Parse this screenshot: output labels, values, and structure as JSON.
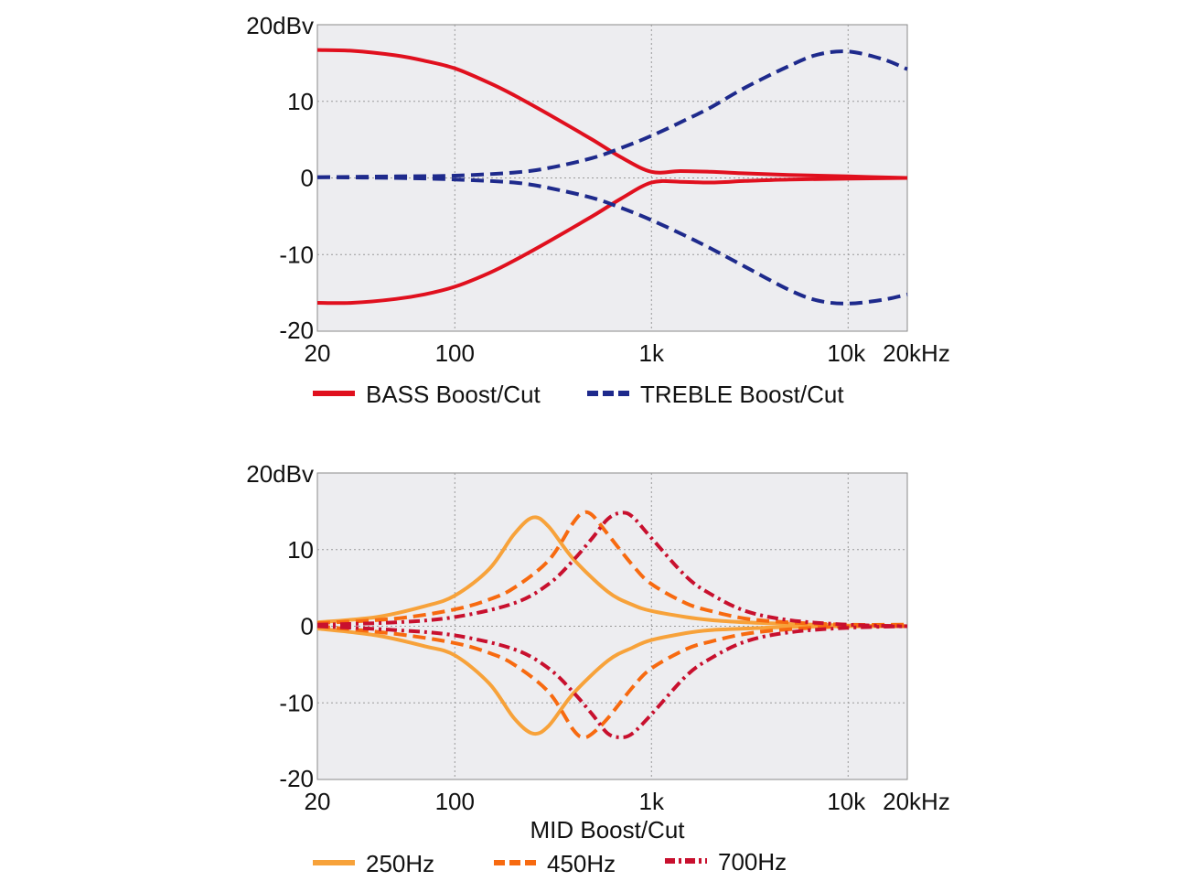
{
  "chart_data": [
    {
      "type": "line",
      "title": "",
      "xscale": "log",
      "xlim": [
        20,
        20000
      ],
      "ylim": [
        -20,
        20
      ],
      "ylabel_unit_tick": "20dBv",
      "yticks": [
        "20dBv",
        "10",
        "0",
        "-10",
        "-20"
      ],
      "xticks": [
        "20",
        "100",
        "1k",
        "10k",
        "20kHz"
      ],
      "xlabel": "",
      "series": [
        {
          "name": "BASS Boost/Cut",
          "style": "solid",
          "color": "#e0101e",
          "x": [
            20,
            30,
            50,
            70,
            100,
            150,
            200,
            300,
            500,
            700,
            1000,
            1400,
            2000,
            3000,
            5000,
            10000,
            20000
          ],
          "y": [
            16.7,
            16.6,
            16.0,
            15.3,
            14.3,
            12.4,
            10.8,
            8.3,
            5.0,
            2.7,
            0.8,
            0.9,
            0.8,
            0.6,
            0.4,
            0.2,
            0.0
          ]
        },
        {
          "name": "BASS Boost/Cut (cut)",
          "style": "solid",
          "color": "#e0101e",
          "x": [
            20,
            30,
            50,
            70,
            100,
            150,
            200,
            300,
            500,
            700,
            1000,
            1400,
            2000,
            3000,
            5000,
            10000,
            20000
          ],
          "y": [
            -16.3,
            -16.3,
            -15.8,
            -15.2,
            -14.2,
            -12.4,
            -10.8,
            -8.3,
            -5.0,
            -2.7,
            -0.6,
            -0.5,
            -0.6,
            -0.4,
            -0.2,
            -0.1,
            0.0
          ]
        },
        {
          "name": "TREBLE Boost/Cut",
          "style": "dashed",
          "color": "#1e2a8c",
          "x": [
            20,
            50,
            100,
            200,
            300,
            500,
            700,
            1000,
            1500,
            2000,
            3000,
            5000,
            7000,
            10000,
            15000,
            20000
          ],
          "y": [
            0.1,
            0.2,
            0.3,
            0.7,
            1.3,
            2.6,
            3.9,
            5.5,
            7.6,
            9.2,
            11.8,
            14.6,
            16.1,
            16.5,
            15.5,
            14.2
          ]
        },
        {
          "name": "TREBLE Boost/Cut (cut)",
          "style": "dashed",
          "color": "#1e2a8c",
          "x": [
            20,
            50,
            100,
            200,
            300,
            500,
            700,
            1000,
            1500,
            2000,
            3000,
            5000,
            7000,
            10000,
            15000,
            20000
          ],
          "y": [
            0.1,
            0.0,
            -0.2,
            -0.6,
            -1.3,
            -2.6,
            -3.9,
            -5.5,
            -7.6,
            -9.2,
            -11.6,
            -14.6,
            -16.0,
            -16.4,
            -15.9,
            -15.2
          ]
        }
      ],
      "legend": [
        {
          "label": "BASS Boost/Cut",
          "style": "solid",
          "color": "#e0101e"
        },
        {
          "label": "TREBLE Boost/Cut",
          "style": "dashed",
          "color": "#1e2a8c"
        }
      ]
    },
    {
      "type": "line",
      "title": "",
      "xscale": "log",
      "xlim": [
        20,
        20000
      ],
      "ylim": [
        -20,
        20
      ],
      "yticks": [
        "20dBv",
        "10",
        "0",
        "-10",
        "-20"
      ],
      "xticks": [
        "20",
        "100",
        "1k",
        "10k",
        "20kHz"
      ],
      "xlabel": "MID Boost/Cut",
      "series": [
        {
          "name": "250Hz",
          "style": "solid",
          "color": "#f7a23a",
          "x": [
            20,
            40,
            70,
            100,
            150,
            200,
            250,
            300,
            400,
            600,
            800,
            1000,
            1500,
            2000,
            3000,
            5000,
            10000,
            20000
          ],
          "y": [
            0.5,
            1.2,
            2.6,
            4.0,
            7.5,
            12.0,
            14.2,
            13.0,
            8.8,
            4.5,
            2.8,
            2.0,
            1.2,
            0.8,
            0.5,
            0.3,
            0.1,
            0.0
          ]
        },
        {
          "name": "250Hz (cut)",
          "style": "solid",
          "color": "#f7a23a",
          "x": [
            20,
            40,
            70,
            100,
            150,
            200,
            250,
            300,
            400,
            600,
            800,
            1000,
            1500,
            2000,
            3000,
            5000,
            10000,
            20000
          ],
          "y": [
            -0.3,
            -1.2,
            -2.6,
            -3.8,
            -7.5,
            -12.0,
            -14.0,
            -13.0,
            -8.8,
            -4.5,
            -2.8,
            -1.8,
            -0.9,
            -0.5,
            -0.3,
            -0.1,
            0.0,
            0.0
          ]
        },
        {
          "name": "450Hz",
          "style": "dashed",
          "color": "#f76a10",
          "x": [
            20,
            50,
            100,
            150,
            200,
            300,
            400,
            450,
            500,
            600,
            800,
            1000,
            1500,
            2000,
            3000,
            5000,
            10000,
            20000
          ],
          "y": [
            0.4,
            1.0,
            2.2,
            3.5,
            5.0,
            8.6,
            13.5,
            14.8,
            14.5,
            12.0,
            8.0,
            5.5,
            3.0,
            2.0,
            1.0,
            0.5,
            0.2,
            0.2
          ]
        },
        {
          "name": "450Hz (cut)",
          "style": "dashed",
          "color": "#f76a10",
          "x": [
            20,
            50,
            100,
            150,
            200,
            300,
            400,
            450,
            500,
            600,
            800,
            1000,
            1500,
            2000,
            3000,
            5000,
            10000,
            20000
          ],
          "y": [
            0.0,
            -1.0,
            -2.2,
            -3.5,
            -5.0,
            -8.6,
            -13.5,
            -14.5,
            -14.0,
            -12.0,
            -8.0,
            -5.5,
            -3.0,
            -2.0,
            -1.0,
            -0.4,
            0.0,
            0.0
          ]
        },
        {
          "name": "700Hz",
          "style": "dashdot",
          "color": "#c8102e",
          "x": [
            20,
            50,
            100,
            200,
            300,
            400,
            500,
            600,
            700,
            800,
            1000,
            1500,
            2000,
            3000,
            5000,
            10000,
            20000
          ],
          "y": [
            0.2,
            0.5,
            1.2,
            3.0,
            5.5,
            8.6,
            11.5,
            14.0,
            14.8,
            14.3,
            11.5,
            6.5,
            4.2,
            2.0,
            0.8,
            0.2,
            0.0
          ]
        },
        {
          "name": "700Hz (cut)",
          "style": "dashdot",
          "color": "#c8102e",
          "x": [
            20,
            50,
            100,
            200,
            300,
            400,
            500,
            600,
            700,
            800,
            1000,
            1500,
            2000,
            3000,
            5000,
            10000,
            20000
          ],
          "y": [
            0.0,
            -0.5,
            -1.2,
            -3.0,
            -5.5,
            -8.6,
            -11.5,
            -14.0,
            -14.5,
            -14.0,
            -11.5,
            -6.5,
            -4.2,
            -2.0,
            -0.8,
            -0.2,
            0.0
          ]
        }
      ],
      "legend": [
        {
          "label": "250Hz",
          "style": "solid",
          "color": "#f7a23a"
        },
        {
          "label": "450Hz",
          "style": "dashed",
          "color": "#f76a10"
        },
        {
          "label": "700Hz",
          "style": "dashdot",
          "color": "#c8102e"
        }
      ]
    }
  ]
}
